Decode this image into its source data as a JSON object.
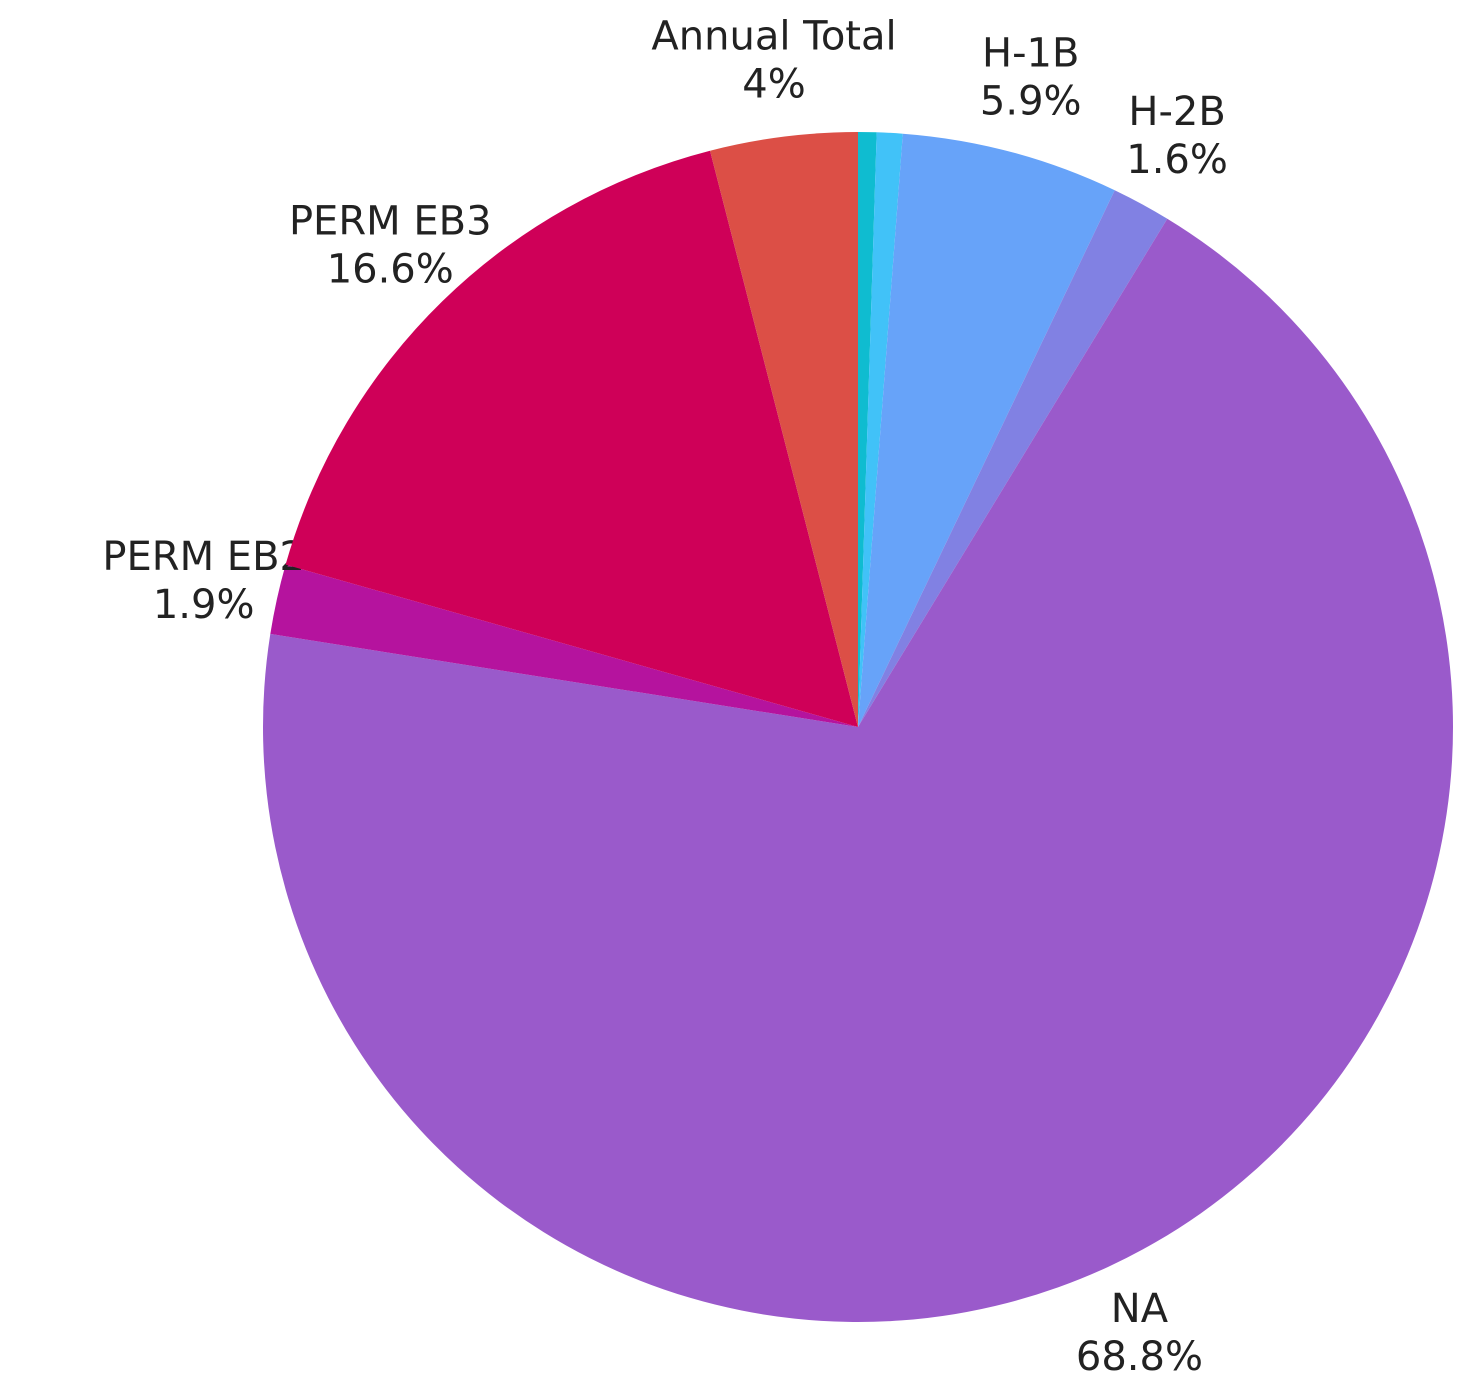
{
  "chart_data": {
    "type": "pie",
    "categories": [
      null,
      null,
      "H-1B",
      "H-2B",
      "NA",
      "PERM EB2",
      "PERM EB3",
      "Annual Total"
    ],
    "values": [
      0.5,
      0.7,
      5.9,
      1.6,
      68.8,
      1.9,
      16.6,
      4
    ],
    "value_labels": [
      null,
      null,
      "5.9%",
      "1.6%",
      "68.8%",
      "1.9%",
      "16.6%",
      "4%"
    ],
    "colors": [
      "#0fbcd0",
      "#41c2f8",
      "#67a3f9",
      "#8181e3",
      "#9a5acb",
      "#b5139e",
      "#cf0058",
      "#dc4f46"
    ]
  }
}
